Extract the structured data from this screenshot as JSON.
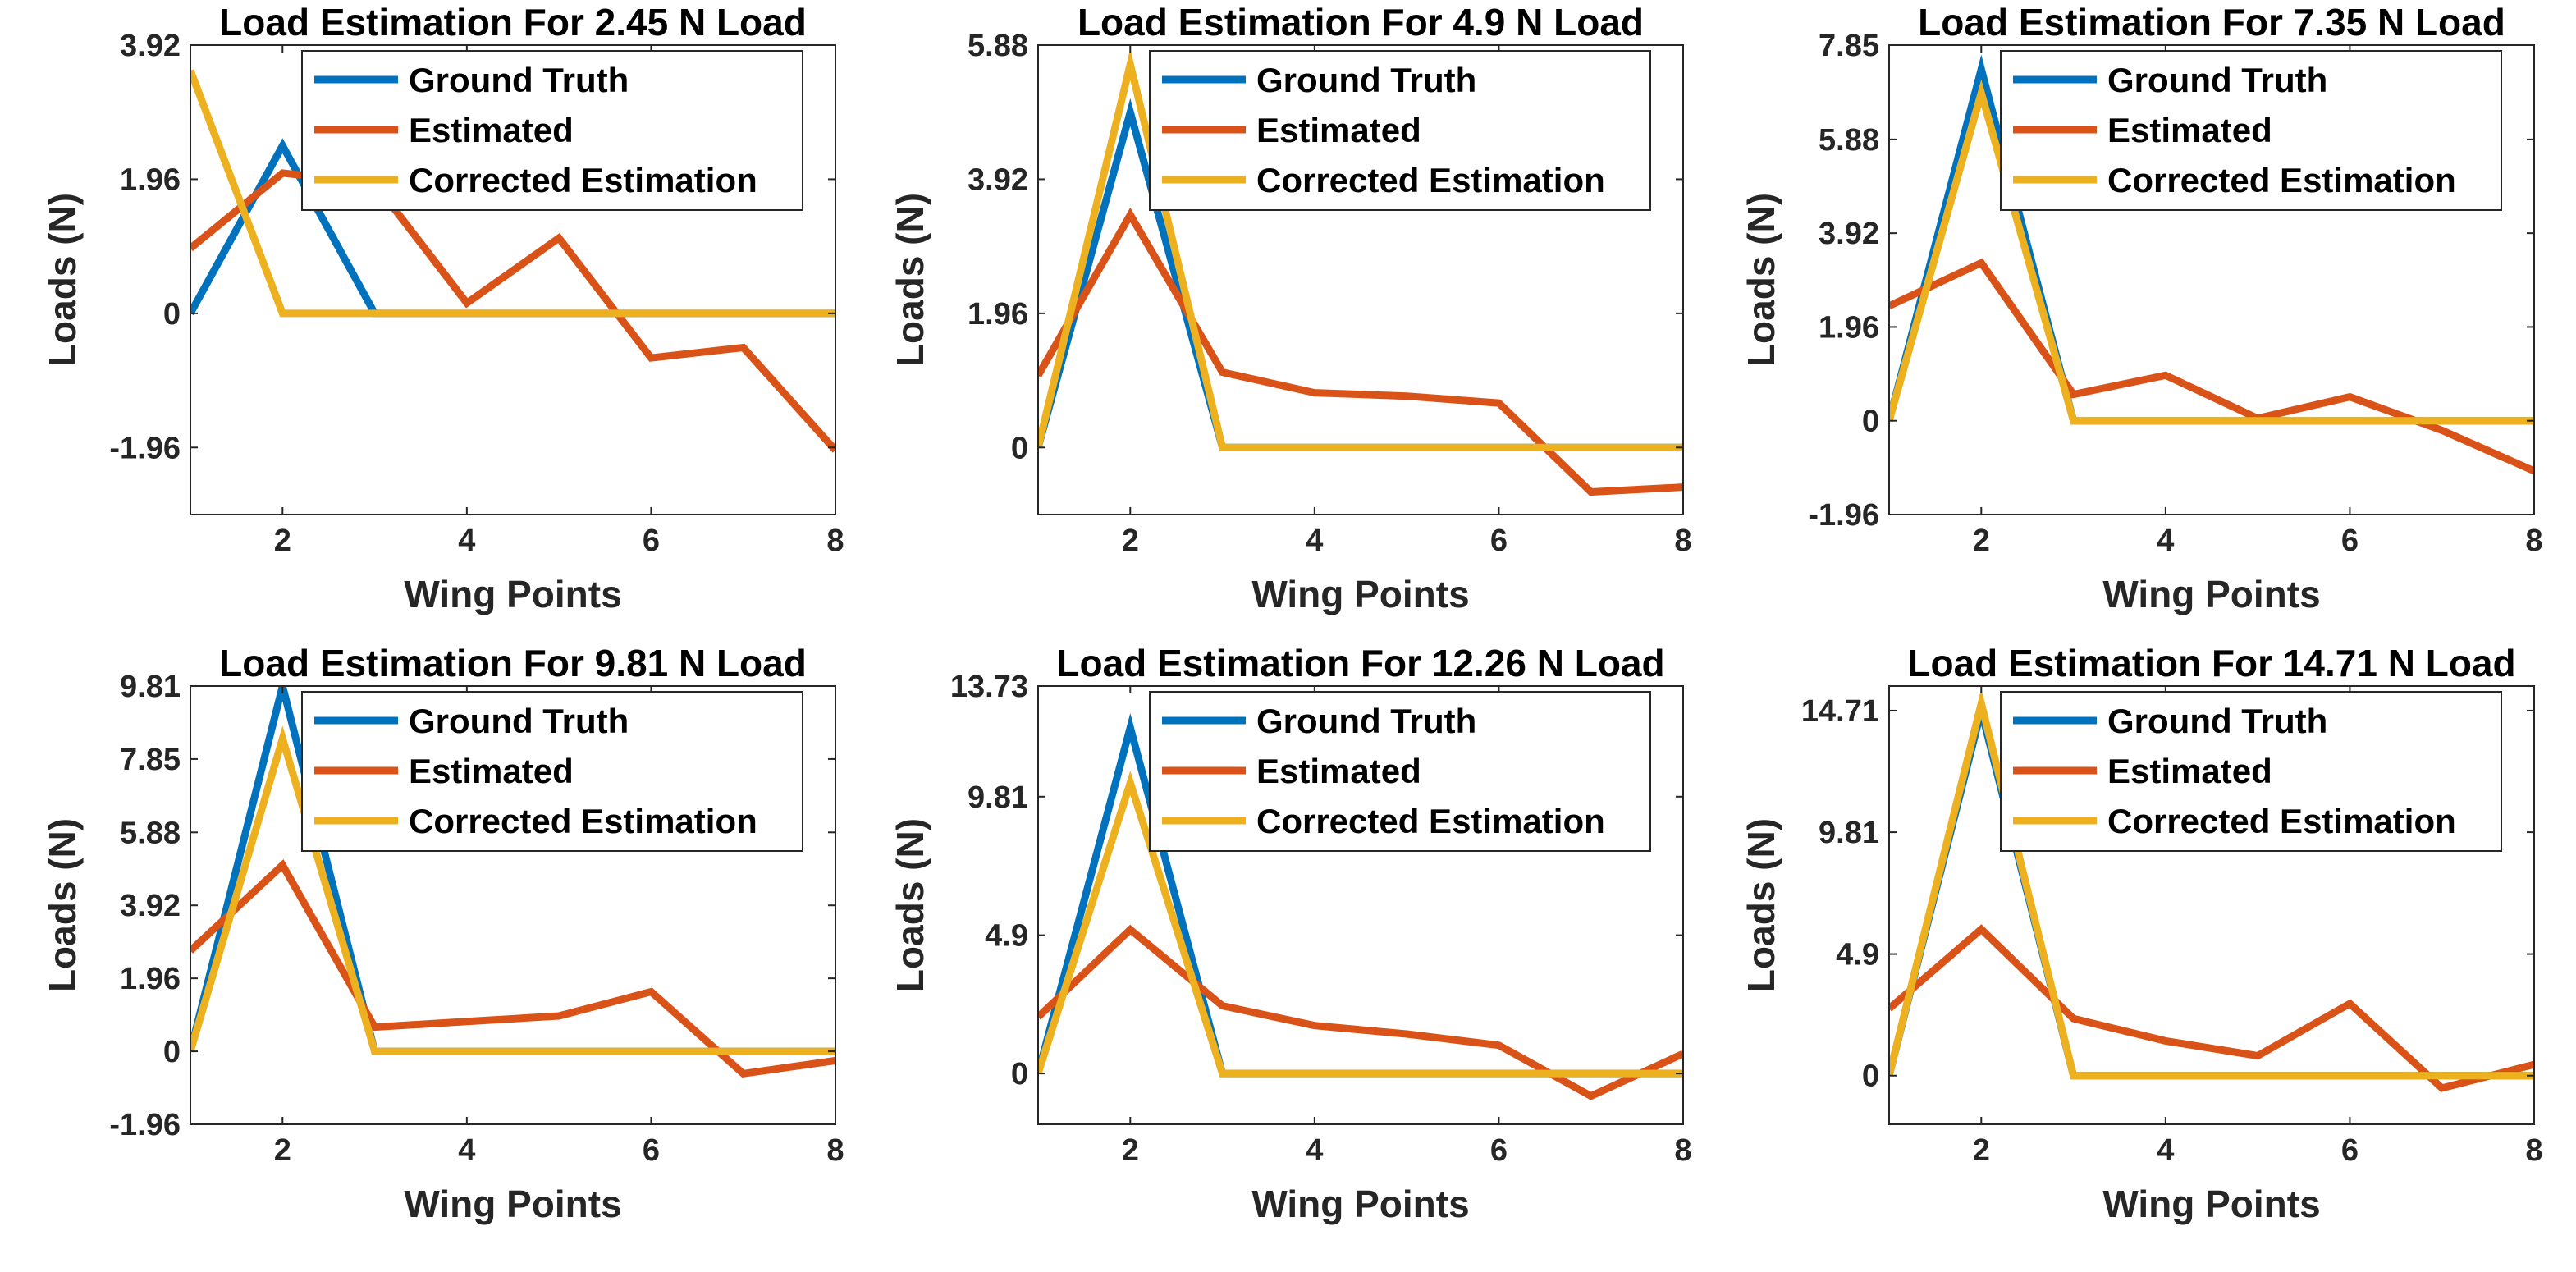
{
  "chart_data": [
    {
      "type": "line",
      "title": "Load Estimation For 2.45 N Load",
      "xlabel": "Wing Points",
      "ylabel": "Loads (N)",
      "x": [
        1,
        2,
        3,
        4,
        5,
        6,
        7,
        8
      ],
      "xlim": [
        1,
        8
      ],
      "ylim": [
        -2.94,
        3.92
      ],
      "xticks": [
        2,
        4,
        6,
        8
      ],
      "yticks": [
        -1.96,
        0,
        1.96,
        3.92
      ],
      "ytick_labels": [
        "-1.96",
        "0",
        "1.96",
        "3.92"
      ],
      "legend": "top-right",
      "series": [
        {
          "name": "Ground Truth",
          "color": "#0072BD",
          "values": [
            0,
            2.45,
            0,
            0,
            0,
            0,
            0,
            0
          ]
        },
        {
          "name": "Estimated",
          "color": "#D95319",
          "values": [
            0.95,
            2.05,
            1.9,
            0.15,
            1.1,
            -0.65,
            -0.5,
            -2.0
          ]
        },
        {
          "name": "Corrected Estimation",
          "color": "#EDB120",
          "values": [
            3.55,
            0,
            0,
            0,
            0,
            0,
            0,
            0
          ]
        }
      ]
    },
    {
      "type": "line",
      "title": "Load Estimation For 4.9 N Load",
      "xlabel": "Wing Points",
      "ylabel": "Loads (N)",
      "x": [
        1,
        2,
        3,
        4,
        5,
        6,
        7,
        8
      ],
      "xlim": [
        1,
        8
      ],
      "ylim": [
        -0.98,
        5.88
      ],
      "xticks": [
        2,
        4,
        6,
        8
      ],
      "yticks": [
        0,
        1.96,
        3.92,
        5.88
      ],
      "ytick_labels": [
        "0",
        "1.96",
        "3.92",
        "5.88"
      ],
      "legend": "top-right",
      "series": [
        {
          "name": "Ground Truth",
          "color": "#0072BD",
          "values": [
            0,
            4.9,
            0,
            0,
            0,
            0,
            0,
            0
          ]
        },
        {
          "name": "Estimated",
          "color": "#D95319",
          "values": [
            1.05,
            3.4,
            1.1,
            0.8,
            0.75,
            0.65,
            -0.65,
            -0.58
          ]
        },
        {
          "name": "Corrected Estimation",
          "color": "#EDB120",
          "values": [
            0,
            5.6,
            0,
            0,
            0,
            0,
            0,
            0
          ]
        }
      ]
    },
    {
      "type": "line",
      "title": "Load Estimation For 7.35 N Load",
      "xlabel": "Wing Points",
      "ylabel": "Loads (N)",
      "x": [
        1,
        2,
        3,
        4,
        5,
        6,
        7,
        8
      ],
      "xlim": [
        1,
        8
      ],
      "ylim": [
        -1.96,
        7.85
      ],
      "xticks": [
        2,
        4,
        6,
        8
      ],
      "yticks": [
        -1.96,
        0,
        1.96,
        3.92,
        5.88,
        7.85
      ],
      "ytick_labels": [
        "-1.96",
        "0",
        "1.96",
        "3.92",
        "5.88",
        "7.85"
      ],
      "legend": "top-right",
      "series": [
        {
          "name": "Ground Truth",
          "color": "#0072BD",
          "values": [
            0,
            7.35,
            0,
            0,
            0,
            0,
            0,
            0
          ]
        },
        {
          "name": "Estimated",
          "color": "#D95319",
          "values": [
            2.4,
            3.3,
            0.55,
            0.95,
            0.05,
            0.5,
            -0.2,
            -1.05
          ]
        },
        {
          "name": "Corrected Estimation",
          "color": "#EDB120",
          "values": [
            0,
            6.85,
            0,
            0,
            0,
            0,
            0,
            0
          ]
        }
      ]
    },
    {
      "type": "line",
      "title": "Load Estimation For 9.81 N Load",
      "xlabel": "Wing Points",
      "ylabel": "Loads (N)",
      "x": [
        1,
        2,
        3,
        4,
        5,
        6,
        7,
        8
      ],
      "xlim": [
        1,
        8
      ],
      "ylim": [
        -1.96,
        9.81
      ],
      "xticks": [
        2,
        4,
        6,
        8
      ],
      "yticks": [
        -1.96,
        0,
        1.96,
        3.92,
        5.88,
        7.85,
        9.81
      ],
      "ytick_labels": [
        "-1.96",
        "0",
        "1.96",
        "3.92",
        "5.88",
        "7.85",
        "9.81"
      ],
      "legend": "top-right",
      "series": [
        {
          "name": "Ground Truth",
          "color": "#0072BD",
          "values": [
            0,
            9.81,
            0,
            0,
            0,
            0,
            0,
            0
          ]
        },
        {
          "name": "Estimated",
          "color": "#D95319",
          "values": [
            2.7,
            5.0,
            0.65,
            0.8,
            0.95,
            1.6,
            -0.6,
            -0.25
          ]
        },
        {
          "name": "Corrected Estimation",
          "color": "#EDB120",
          "values": [
            0,
            8.4,
            0,
            0,
            0,
            0,
            0,
            0
          ]
        }
      ]
    },
    {
      "type": "line",
      "title": "Load Estimation For 12.26 N Load",
      "xlabel": "Wing Points",
      "ylabel": "Loads (N)",
      "x": [
        1,
        2,
        3,
        4,
        5,
        6,
        7,
        8
      ],
      "xlim": [
        1,
        8
      ],
      "ylim": [
        -1.8,
        13.73
      ],
      "xticks": [
        2,
        4,
        6,
        8
      ],
      "yticks": [
        0,
        4.9,
        9.81,
        13.73
      ],
      "ytick_labels": [
        "0",
        "4.9",
        "9.81",
        "13.73"
      ],
      "legend": "top-right",
      "series": [
        {
          "name": "Ground Truth",
          "color": "#0072BD",
          "values": [
            0,
            12.26,
            0,
            0,
            0,
            0,
            0,
            0
          ]
        },
        {
          "name": "Estimated",
          "color": "#D95319",
          "values": [
            2.0,
            5.1,
            2.4,
            1.7,
            1.4,
            1.0,
            -0.8,
            0.7
          ]
        },
        {
          "name": "Corrected Estimation",
          "color": "#EDB120",
          "values": [
            0,
            10.3,
            0,
            0,
            0,
            0,
            0,
            0
          ]
        }
      ]
    },
    {
      "type": "line",
      "title": "Load Estimation For 14.71 N Load",
      "xlabel": "Wing Points",
      "ylabel": "Loads (N)",
      "x": [
        1,
        2,
        3,
        4,
        5,
        6,
        7,
        8
      ],
      "xlim": [
        1,
        8
      ],
      "ylim": [
        -1.96,
        15.7
      ],
      "xticks": [
        2,
        4,
        6,
        8
      ],
      "yticks": [
        0,
        4.9,
        9.81,
        14.71
      ],
      "ytick_labels": [
        "0",
        "4.9",
        "9.81",
        "14.71"
      ],
      "legend": "top-right",
      "series": [
        {
          "name": "Ground Truth",
          "color": "#0072BD",
          "values": [
            0,
            14.71,
            0,
            0,
            0,
            0,
            0,
            0
          ]
        },
        {
          "name": "Estimated",
          "color": "#D95319",
          "values": [
            2.7,
            5.9,
            2.3,
            1.4,
            0.8,
            2.9,
            -0.5,
            0.45
          ]
        },
        {
          "name": "Corrected Estimation",
          "color": "#EDB120",
          "values": [
            0,
            15.0,
            0,
            0,
            0,
            0,
            0,
            0
          ]
        }
      ]
    }
  ]
}
